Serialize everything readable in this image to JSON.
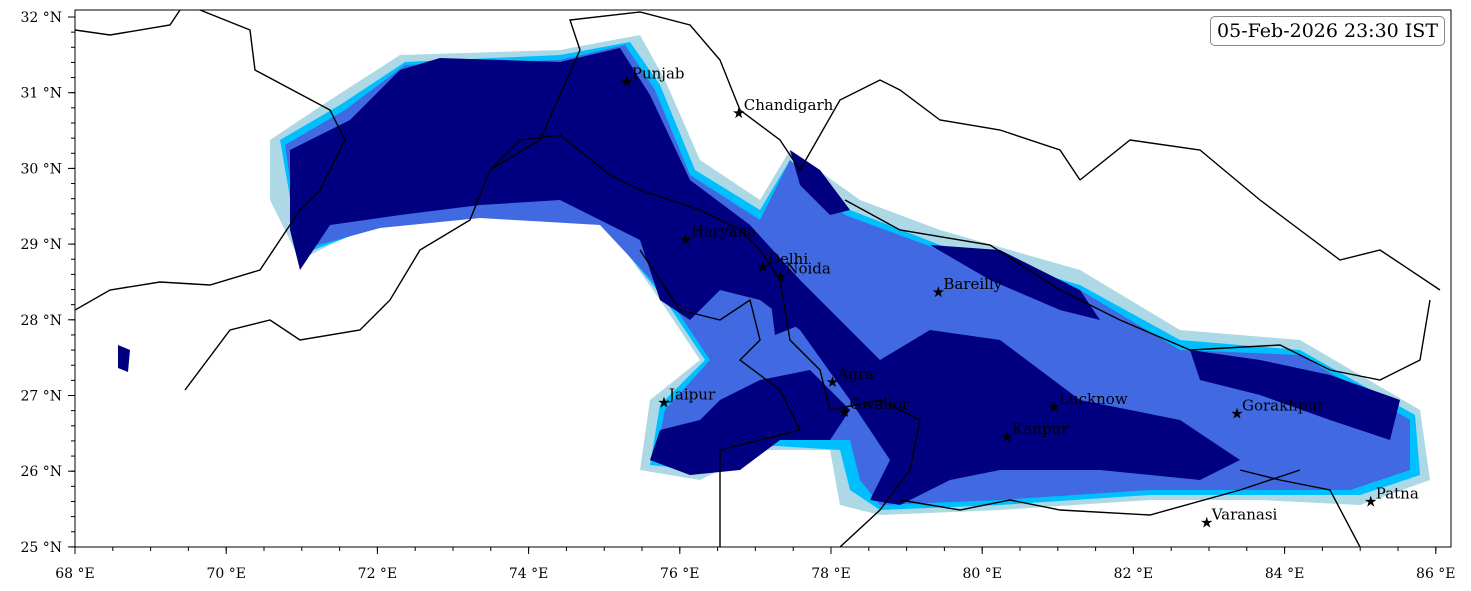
{
  "timestamp": "05-Feb-2026 23:30 IST",
  "map_extent": {
    "lon": [
      68,
      86.2
    ],
    "lat": [
      25,
      32
    ]
  },
  "x_ticks": [
    "68 °E",
    "70 °E",
    "72 °E",
    "74 °E",
    "76 °E",
    "78 °E",
    "80 °E",
    "82 °E",
    "84 °E",
    "86 °E"
  ],
  "y_ticks": [
    "25 °N",
    "26 °N",
    "27 °N",
    "28 °N",
    "29 °N",
    "30 °N",
    "31 °N",
    "32 °N"
  ],
  "colors": {
    "level1": "#add8e6",
    "level2": "#00bfff",
    "level3": "#4169e1",
    "level4": "#0000cd",
    "level5": "#000080"
  },
  "marker_icon": "star-icon",
  "cities": [
    {
      "name": "Punjab",
      "lon": 75.3,
      "lat": 31.15
    },
    {
      "name": "Chandigarh",
      "lon": 76.78,
      "lat": 30.73
    },
    {
      "name": "Haryana",
      "lon": 76.08,
      "lat": 29.06
    },
    {
      "name": "Delhi",
      "lon": 77.1,
      "lat": 28.7
    },
    {
      "name": "Noida",
      "lon": 77.33,
      "lat": 28.57
    },
    {
      "name": "Bareilly",
      "lon": 79.42,
      "lat": 28.37
    },
    {
      "name": "Agra",
      "lon": 78.02,
      "lat": 27.18
    },
    {
      "name": "Jaipur",
      "lon": 75.79,
      "lat": 26.91
    },
    {
      "name": "Gwalior",
      "lon": 78.18,
      "lat": 26.78
    },
    {
      "name": "Lucknow",
      "lon": 80.95,
      "lat": 26.85
    },
    {
      "name": "Kanpur",
      "lon": 80.33,
      "lat": 26.45
    },
    {
      "name": "Gorakhpur",
      "lon": 83.37,
      "lat": 26.76
    },
    {
      "name": "Varanasi",
      "lon": 82.97,
      "lat": 25.32
    },
    {
      "name": "Patna",
      "lon": 85.14,
      "lat": 25.6
    }
  ]
}
